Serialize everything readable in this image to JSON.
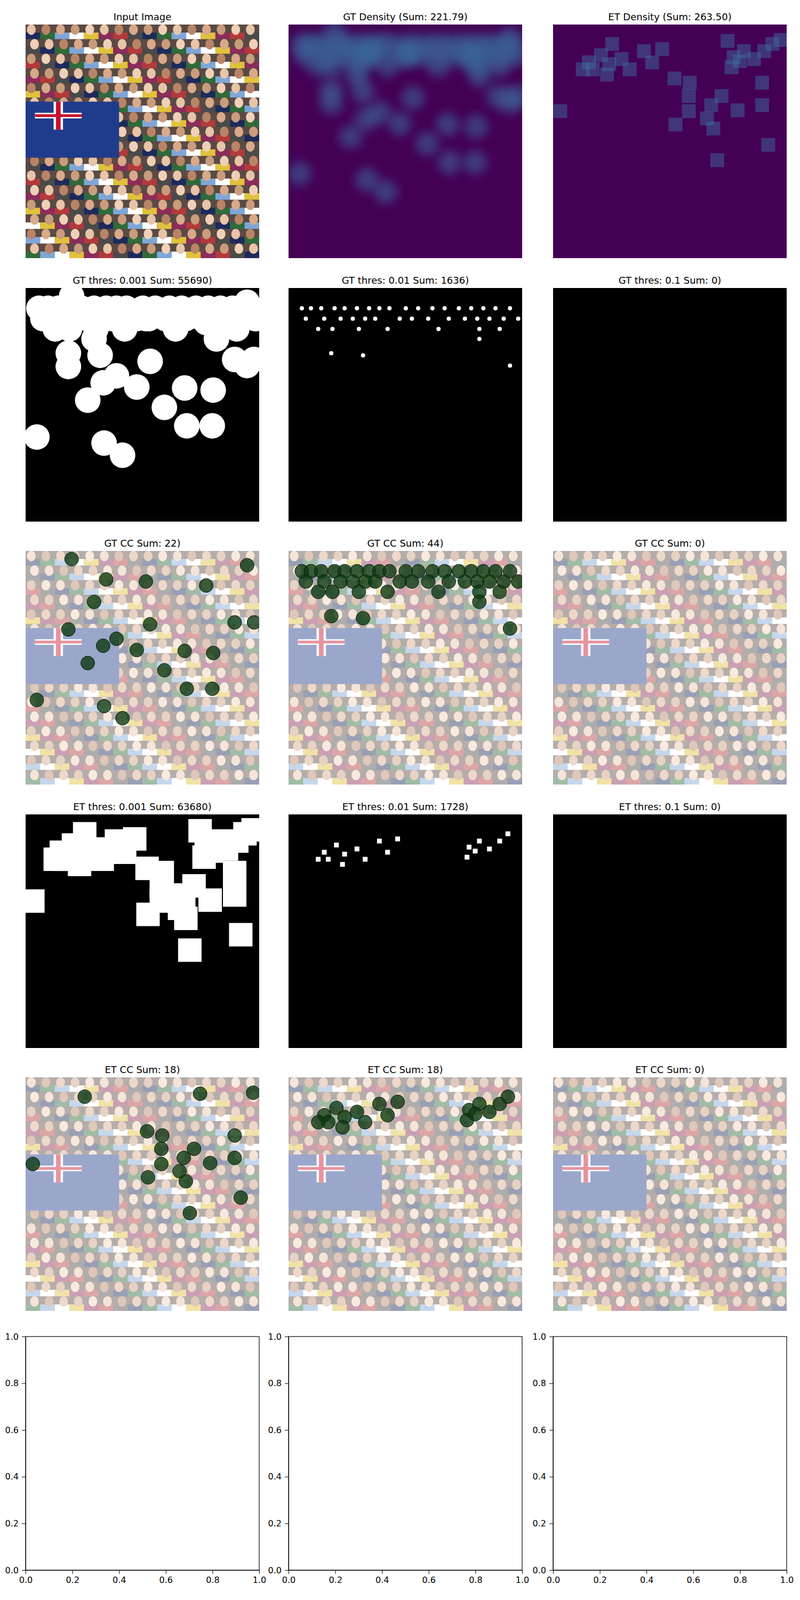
{
  "chart_data": [
    {
      "type": "image",
      "title": "Input Image"
    },
    {
      "type": "density",
      "title": "GT Density (Sum: 221.79)"
    },
    {
      "type": "density",
      "title": "ET Density (Sum: 263.50)"
    },
    {
      "type": "threshold",
      "title": "GT thres: 0.001 Sum: 55690)"
    },
    {
      "type": "threshold",
      "title": "GT thres: 0.01 Sum: 1636)"
    },
    {
      "type": "threshold",
      "title": "GT thres: 0.1 Sum: 0)"
    },
    {
      "type": "cc",
      "title": "GT CC Sum: 22)",
      "xlim": [
        0,
        1
      ],
      "ylim": [
        1,
        0
      ],
      "x": [
        0.197,
        0.948,
        0.345,
        0.515,
        0.773,
        0.293,
        0.183,
        0.533,
        0.895,
        0.389,
        0.476,
        0.681,
        0.803,
        0.978,
        0.266,
        0.332,
        0.594,
        0.69,
        0.799,
        0.415,
        0.048,
        0.336
      ],
      "y": [
        0.035,
        0.061,
        0.122,
        0.131,
        0.148,
        0.218,
        0.336,
        0.314,
        0.306,
        0.376,
        0.424,
        0.428,
        0.437,
        0.306,
        0.48,
        0.406,
        0.511,
        0.59,
        0.59,
        0.716,
        0.638,
        0.664
      ]
    },
    {
      "type": "cc",
      "title": "GT CC Sum: 44)",
      "xlim": [
        0,
        1
      ],
      "ylim": [
        1,
        0
      ],
      "x": [
        0.057,
        0.096,
        0.14,
        0.197,
        0.24,
        0.293,
        0.345,
        0.389,
        0.432,
        0.502,
        0.555,
        0.616,
        0.668,
        0.729,
        0.782,
        0.834,
        0.886,
        0.948,
        0.074,
        0.153,
        0.223,
        0.275,
        0.328,
        0.371,
        0.476,
        0.528,
        0.598,
        0.686,
        0.755,
        0.808,
        0.86,
        0.921,
        0.983,
        0.127,
        0.188,
        0.301,
        0.424,
        0.642,
        0.817,
        0.904,
        0.183,
        0.319,
        0.817,
        0.948
      ],
      "y": [
        0.087,
        0.087,
        0.087,
        0.087,
        0.087,
        0.087,
        0.087,
        0.087,
        0.087,
        0.087,
        0.087,
        0.087,
        0.087,
        0.087,
        0.087,
        0.087,
        0.087,
        0.087,
        0.131,
        0.131,
        0.131,
        0.131,
        0.131,
        0.131,
        0.131,
        0.131,
        0.131,
        0.131,
        0.131,
        0.131,
        0.131,
        0.131,
        0.131,
        0.175,
        0.175,
        0.175,
        0.175,
        0.175,
        0.175,
        0.175,
        0.279,
        0.288,
        0.218,
        0.332
      ]
    },
    {
      "type": "cc",
      "title": "GT CC Sum: 0)",
      "xlim": [
        0,
        1
      ],
      "ylim": [
        1,
        0
      ],
      "x": [],
      "y": []
    },
    {
      "type": "threshold",
      "title": "ET thres: 0.001 Sum: 63680)"
    },
    {
      "type": "threshold",
      "title": "ET thres: 0.01 Sum: 1728)"
    },
    {
      "type": "threshold",
      "title": "ET thres: 0.1 Sum: 0)"
    },
    {
      "type": "cc",
      "title": "ET CC Sum: 18)",
      "xlim": [
        0,
        1
      ],
      "ylim": [
        1,
        0
      ],
      "x": [
        0.253,
        0.974,
        0.747,
        0.52,
        0.585,
        0.895,
        0.031,
        0.581,
        0.581,
        0.721,
        0.677,
        0.659,
        0.524,
        0.79,
        0.686,
        0.895,
        0.921,
        0.703
      ],
      "y": [
        0.083,
        0.066,
        0.07,
        0.231,
        0.249,
        0.249,
        0.371,
        0.306,
        0.371,
        0.306,
        0.345,
        0.402,
        0.428,
        0.367,
        0.445,
        0.345,
        0.515,
        0.581
      ]
    },
    {
      "type": "cc",
      "title": "ET CC Sum: 18)",
      "xlim": [
        0,
        1
      ],
      "ylim": [
        1,
        0
      ],
      "x": [
        0.153,
        0.205,
        0.17,
        0.24,
        0.293,
        0.389,
        0.467,
        0.424,
        0.328,
        0.231,
        0.773,
        0.817,
        0.904,
        0.939,
        0.86,
        0.764,
        0.799,
        0.127
      ],
      "y": [
        0.162,
        0.131,
        0.192,
        0.17,
        0.148,
        0.114,
        0.105,
        0.162,
        0.192,
        0.214,
        0.14,
        0.114,
        0.114,
        0.083,
        0.148,
        0.183,
        0.157,
        0.192
      ]
    },
    {
      "type": "cc",
      "title": "ET CC Sum: 0)",
      "xlim": [
        0,
        1
      ],
      "ylim": [
        1,
        0
      ],
      "x": [],
      "y": []
    },
    {
      "type": "empty",
      "xlim": [
        0,
        1
      ],
      "ylim": [
        0,
        1
      ],
      "xticks": [
        {
          "value": 0,
          "label": "0.0"
        },
        {
          "value": 0.2,
          "label": "0.2"
        },
        {
          "value": 0.4,
          "label": "0.4"
        },
        {
          "value": 0.6,
          "label": "0.6"
        },
        {
          "value": 0.8,
          "label": "0.8"
        },
        {
          "value": 1,
          "label": "1.0"
        }
      ],
      "yticks": [
        {
          "value": 0,
          "label": "0.0"
        },
        {
          "value": 0.2,
          "label": "0.2"
        },
        {
          "value": 0.4,
          "label": "0.4"
        },
        {
          "value": 0.6,
          "label": "0.6"
        },
        {
          "value": 0.8,
          "label": "0.8"
        },
        {
          "value": 1,
          "label": "1.0"
        }
      ]
    },
    {
      "type": "empty",
      "xlim": [
        0,
        1
      ],
      "ylim": [
        0,
        1
      ],
      "xticks": [
        {
          "value": 0,
          "label": "0.0"
        },
        {
          "value": 0.2,
          "label": "0.2"
        },
        {
          "value": 0.4,
          "label": "0.4"
        },
        {
          "value": 0.6,
          "label": "0.6"
        },
        {
          "value": 0.8,
          "label": "0.8"
        },
        {
          "value": 1,
          "label": "1.0"
        }
      ],
      "yticks": [
        {
          "value": 0,
          "label": "0.0"
        },
        {
          "value": 0.2,
          "label": "0.2"
        },
        {
          "value": 0.4,
          "label": "0.4"
        },
        {
          "value": 0.6,
          "label": "0.6"
        },
        {
          "value": 0.8,
          "label": "0.8"
        },
        {
          "value": 1,
          "label": "1.0"
        }
      ]
    },
    {
      "type": "empty",
      "xlim": [
        0,
        1
      ],
      "ylim": [
        0,
        1
      ],
      "xticks": [
        {
          "value": 0,
          "label": "0.0"
        },
        {
          "value": 0.2,
          "label": "0.2"
        },
        {
          "value": 0.4,
          "label": "0.4"
        },
        {
          "value": 0.6,
          "label": "0.6"
        },
        {
          "value": 0.8,
          "label": "0.8"
        },
        {
          "value": 1,
          "label": "1.0"
        }
      ],
      "yticks": [
        {
          "value": 0,
          "label": "0.0"
        },
        {
          "value": 0.2,
          "label": "0.2"
        },
        {
          "value": 0.4,
          "label": "0.4"
        },
        {
          "value": 0.6,
          "label": "0.6"
        },
        {
          "value": 0.8,
          "label": "0.8"
        },
        {
          "value": 1,
          "label": "1.0"
        }
      ]
    }
  ]
}
